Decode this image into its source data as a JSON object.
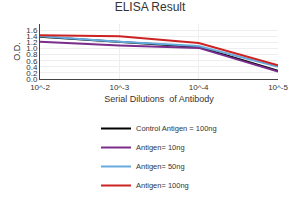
{
  "chart_data": {
    "type": "line",
    "title": "ELISA Result",
    "xlabel": "Serial Dilutions  of Antibody",
    "ylabel": "O.D.",
    "x": [
      0.01,
      0.001,
      0.0001,
      1e-05
    ],
    "series": [
      {
        "name": "Control Antigen = 100ng",
        "color": "#000000",
        "values": [
          1.38,
          1.22,
          1.05,
          0.27
        ]
      },
      {
        "name": "Antigen= 10ng",
        "color": "#7B2D8B",
        "values": [
          1.22,
          1.1,
          1.02,
          0.25
        ]
      },
      {
        "name": "Antigen= 50ng",
        "color": "#66AADD",
        "values": [
          1.4,
          1.22,
          1.08,
          0.4
        ]
      },
      {
        "name": "Antigen= 100ng",
        "color": "#CC2222",
        "values": [
          1.43,
          1.4,
          1.18,
          0.45
        ]
      }
    ],
    "log": "x",
    "xlim": [
      0.01,
      1e-05
    ],
    "xticks": [
      {
        "value": 0.01,
        "label": "10^-2"
      },
      {
        "value": 0.001,
        "label": "10^-3"
      },
      {
        "value": 0.0001,
        "label": "10^-4"
      },
      {
        "value": 1e-05,
        "label": "10^-5"
      }
    ],
    "ylim": [
      0,
      1.8
    ],
    "yticks": [
      {
        "value": 0,
        "label": "0.0"
      },
      0.2,
      0.4,
      0.6,
      0.8,
      {
        "value": 1,
        "label": "1.0"
      },
      1.2,
      1.4,
      1.6
    ],
    "grid": true,
    "legend": "bottom"
  }
}
